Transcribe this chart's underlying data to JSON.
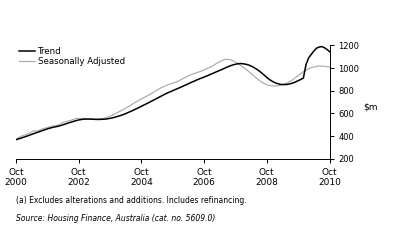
{
  "legend_entries": [
    "Trend",
    "Seasonally Adjusted"
  ],
  "trend_color": "#000000",
  "seasonal_color": "#aaaaaa",
  "footnote1": "(a) Excludes alterations and additions. Includes refinancing.",
  "footnote2": "Source: Housing Finance, Australia (cat. no. 5609.0)",
  "xlim_start": 0,
  "xlim_end": 120,
  "ylim": [
    200,
    1200
  ],
  "yticks": [
    200,
    400,
    600,
    800,
    1000,
    1200
  ],
  "xtick_positions": [
    0,
    24,
    48,
    72,
    96,
    120
  ],
  "xtick_labels": [
    "Oct\n2000",
    "Oct\n2002",
    "Oct\n2004",
    "Oct\n2006",
    "Oct\n2008",
    "Oct\n2010"
  ],
  "trend_lw": 1.1,
  "seasonal_lw": 0.85,
  "trend_data": [
    370,
    376,
    383,
    391,
    399,
    407,
    416,
    424,
    432,
    440,
    448,
    456,
    464,
    471,
    477,
    482,
    487,
    493,
    500,
    508,
    516,
    523,
    530,
    537,
    543,
    547,
    550,
    551,
    551,
    550,
    549,
    548,
    548,
    549,
    550,
    553,
    557,
    562,
    568,
    575,
    582,
    590,
    599,
    609,
    619,
    630,
    641,
    652,
    663,
    675,
    686,
    698,
    710,
    722,
    734,
    746,
    758,
    770,
    781,
    791,
    801,
    811,
    821,
    831,
    841,
    852,
    862,
    873,
    883,
    893,
    903,
    912,
    921,
    930,
    940,
    950,
    960,
    970,
    980,
    990,
    1000,
    1010,
    1020,
    1028,
    1034,
    1038,
    1040,
    1038,
    1034,
    1028,
    1018,
    1006,
    992,
    976,
    958,
    938,
    918,
    900,
    885,
    873,
    864,
    858,
    855,
    855,
    857,
    862,
    869,
    878,
    889,
    900,
    912,
    1030,
    1090,
    1120,
    1150,
    1175,
    1185,
    1190,
    1180,
    1165,
    1145
  ],
  "seasonal_data": [
    365,
    385,
    400,
    408,
    415,
    425,
    438,
    448,
    442,
    454,
    462,
    470,
    475,
    482,
    490,
    492,
    498,
    507,
    520,
    528,
    534,
    540,
    548,
    556,
    558,
    553,
    558,
    552,
    550,
    552,
    550,
    548,
    552,
    555,
    560,
    568,
    576,
    586,
    598,
    610,
    622,
    634,
    646,
    660,
    674,
    688,
    702,
    716,
    728,
    740,
    752,
    764,
    778,
    792,
    806,
    820,
    832,
    842,
    852,
    860,
    868,
    876,
    885,
    896,
    908,
    920,
    932,
    942,
    950,
    958,
    966,
    974,
    984,
    994,
    1004,
    1016,
    1030,
    1044,
    1056,
    1068,
    1076,
    1078,
    1074,
    1066,
    1054,
    1040,
    1024,
    1006,
    990,
    972,
    952,
    932,
    912,
    894,
    878,
    864,
    854,
    847,
    843,
    842,
    843,
    847,
    853,
    862,
    872,
    884,
    899,
    916,
    934,
    952,
    968,
    982,
    994,
    1003,
    1010,
    1015,
    1018,
    1018,
    1016,
    1012,
    1008
  ]
}
